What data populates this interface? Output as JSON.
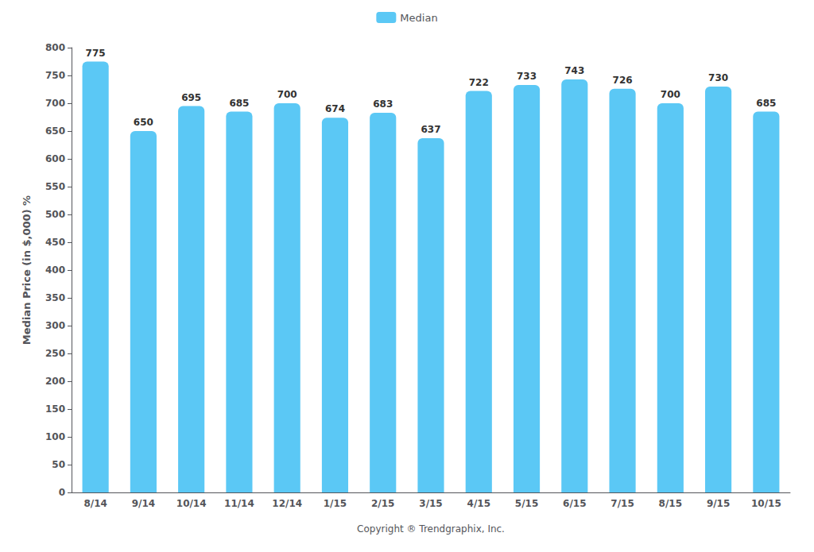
{
  "chart_data": {
    "type": "bar",
    "categories": [
      "8/14",
      "9/14",
      "10/14",
      "11/14",
      "12/14",
      "1/15",
      "2/15",
      "3/15",
      "4/15",
      "5/15",
      "6/15",
      "7/15",
      "8/15",
      "9/15",
      "10/15"
    ],
    "series": [
      {
        "name": "Median",
        "color": "#5BC8F5",
        "values": [
          775,
          650,
          695,
          685,
          700,
          674,
          683,
          637,
          722,
          733,
          743,
          726,
          700,
          730,
          685
        ]
      }
    ],
    "ylabel": "Median Price (in $,000) %",
    "xlabel": "Copyright ® Trendgraphix, Inc.",
    "ylim": [
      0,
      800
    ],
    "yticks": [
      0,
      50,
      100,
      150,
      200,
      250,
      300,
      350,
      400,
      450,
      500,
      550,
      600,
      650,
      700,
      750,
      800
    ],
    "grid": false,
    "legend": "top",
    "data_labels": true
  }
}
